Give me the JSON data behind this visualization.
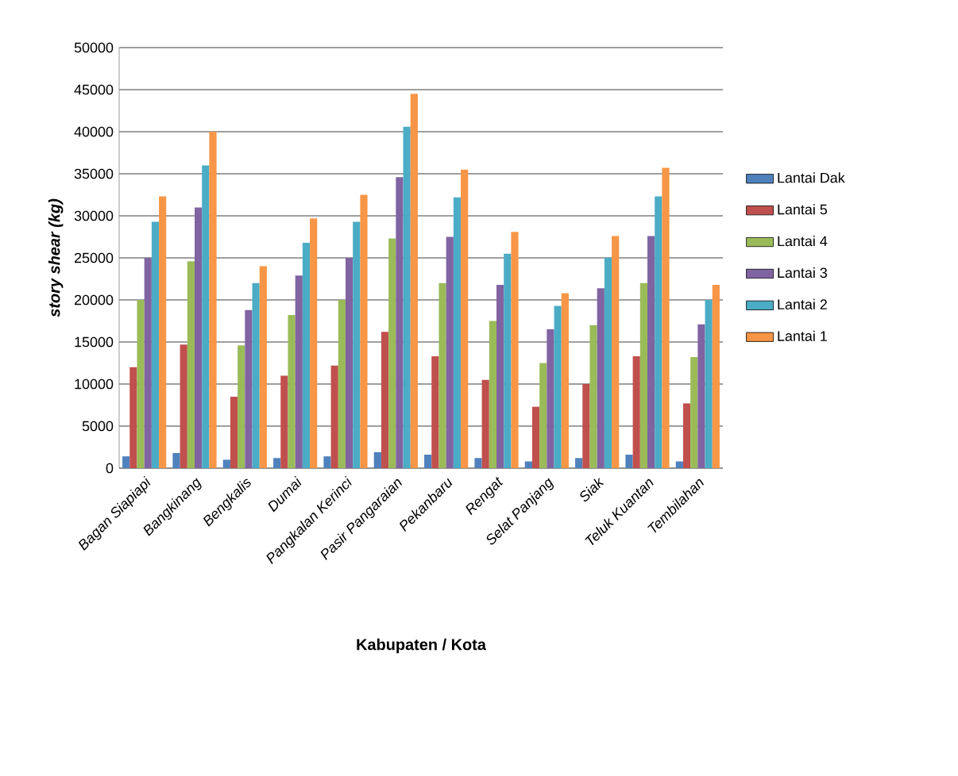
{
  "chart_data": {
    "type": "bar",
    "xlabel": "Kabupaten / Kota",
    "ylabel": "story shear (kg)",
    "categories": [
      "Bagan Siapiapi",
      "Bangkinang",
      "Bengkalis",
      "Dumai",
      "Pangkalan Kerinci",
      "Pasir Pangaraian",
      "Pekanbaru",
      "Rengat",
      "Selat Panjang",
      "Siak",
      "Teluk Kuantan",
      "Tembilahan"
    ],
    "series": [
      {
        "name": "Lantai  Dak",
        "color": "#4f81bd",
        "values": [
          1400,
          1800,
          1000,
          1200,
          1400,
          1900,
          1600,
          1200,
          800,
          1200,
          1600,
          800
        ]
      },
      {
        "name": "Lantai 5",
        "color": "#c0504d",
        "values": [
          12000,
          14700,
          8500,
          11000,
          12200,
          16200,
          13300,
          10500,
          7300,
          10000,
          13300,
          7700
        ]
      },
      {
        "name": "Lantai 4",
        "color": "#9bbb59",
        "values": [
          20000,
          24600,
          14600,
          18200,
          20000,
          27300,
          22000,
          17500,
          12500,
          17000,
          22000,
          13200
        ]
      },
      {
        "name": "Lantai 3",
        "color": "#8064a2",
        "values": [
          25000,
          31000,
          18800,
          22900,
          25000,
          34600,
          27500,
          21800,
          16500,
          21400,
          27600,
          17100
        ]
      },
      {
        "name": "Lantai 2",
        "color": "#4bacc6",
        "values": [
          29300,
          36000,
          22000,
          26800,
          29300,
          40600,
          32200,
          25500,
          19300,
          25000,
          32300,
          20000
        ]
      },
      {
        "name": "Lantai 1",
        "color": "#f79646",
        "values": [
          32300,
          40000,
          24000,
          29700,
          32500,
          44500,
          35500,
          28100,
          20800,
          27600,
          35700,
          21800
        ]
      }
    ],
    "ylim": [
      0,
      50000
    ],
    "yticks": [
      0,
      5000,
      10000,
      15000,
      20000,
      25000,
      30000,
      35000,
      40000,
      45000,
      50000
    ],
    "grid": "y",
    "legend": "right"
  }
}
